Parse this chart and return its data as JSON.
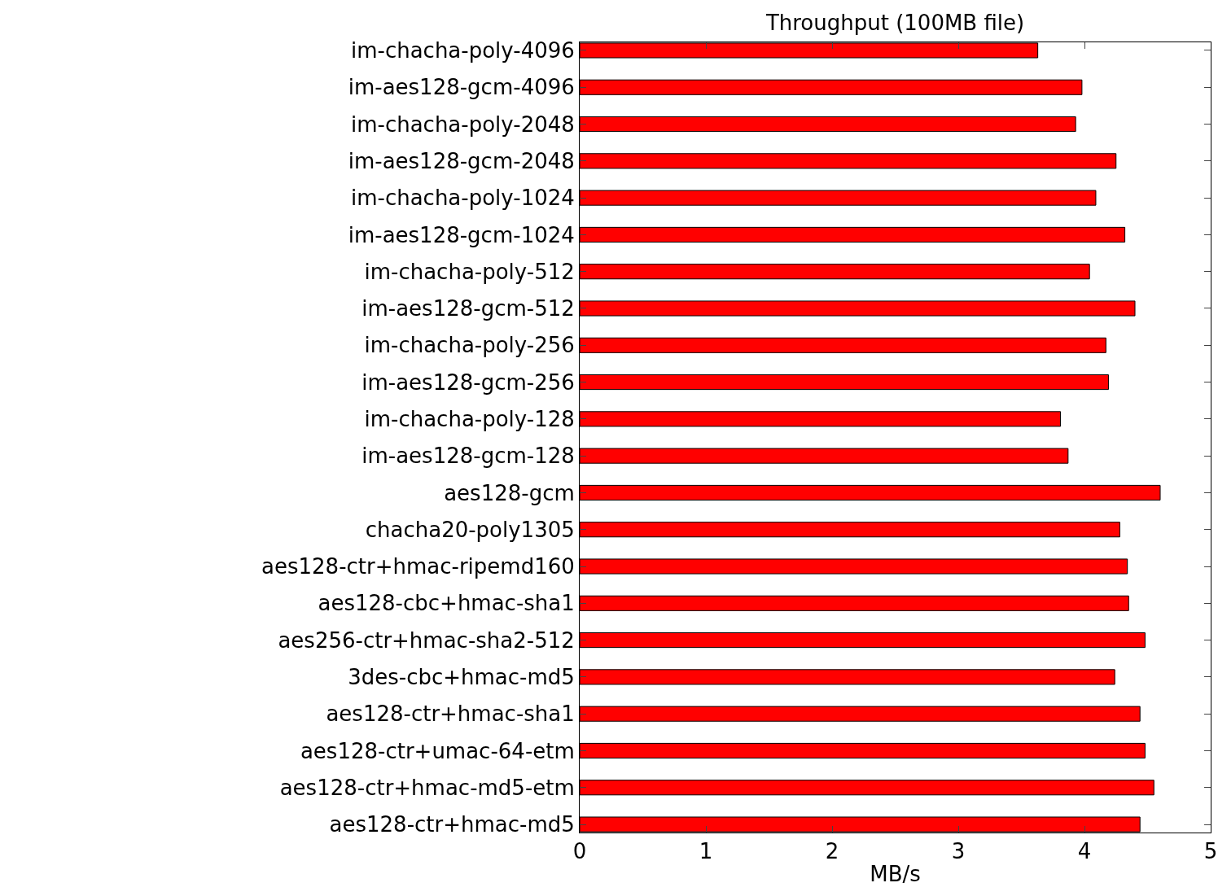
{
  "chart_data": {
    "type": "bar",
    "orientation": "horizontal",
    "title": "Throughput (100MB file)",
    "xlabel": "MB/s",
    "categories": [
      "im-chacha-poly-4096",
      "im-aes128-gcm-4096",
      "im-chacha-poly-2048",
      "im-aes128-gcm-2048",
      "im-chacha-poly-1024",
      "im-aes128-gcm-1024",
      "im-chacha-poly-512",
      "im-aes128-gcm-512",
      "im-chacha-poly-256",
      "im-aes128-gcm-256",
      "im-chacha-poly-128",
      "im-aes128-gcm-128",
      "aes128-gcm",
      "chacha20-poly1305",
      "aes128-ctr+hmac-ripemd160",
      "aes128-cbc+hmac-sha1",
      "aes256-ctr+hmac-sha2-512",
      "3des-cbc+hmac-md5",
      "aes128-ctr+hmac-sha1",
      "aes128-ctr+umac-64-etm",
      "aes128-ctr+hmac-md5-etm",
      "aes128-ctr+hmac-md5"
    ],
    "values": [
      3.63,
      3.98,
      3.93,
      4.25,
      4.09,
      4.32,
      4.04,
      4.4,
      4.17,
      4.19,
      3.81,
      3.87,
      4.6,
      4.28,
      4.34,
      4.35,
      4.48,
      4.24,
      4.44,
      4.48,
      4.55,
      4.44
    ],
    "color": "#ff0000",
    "xlim": [
      0,
      5
    ],
    "xticks": [
      0,
      1,
      2,
      3,
      4,
      5
    ],
    "grid": false
  }
}
